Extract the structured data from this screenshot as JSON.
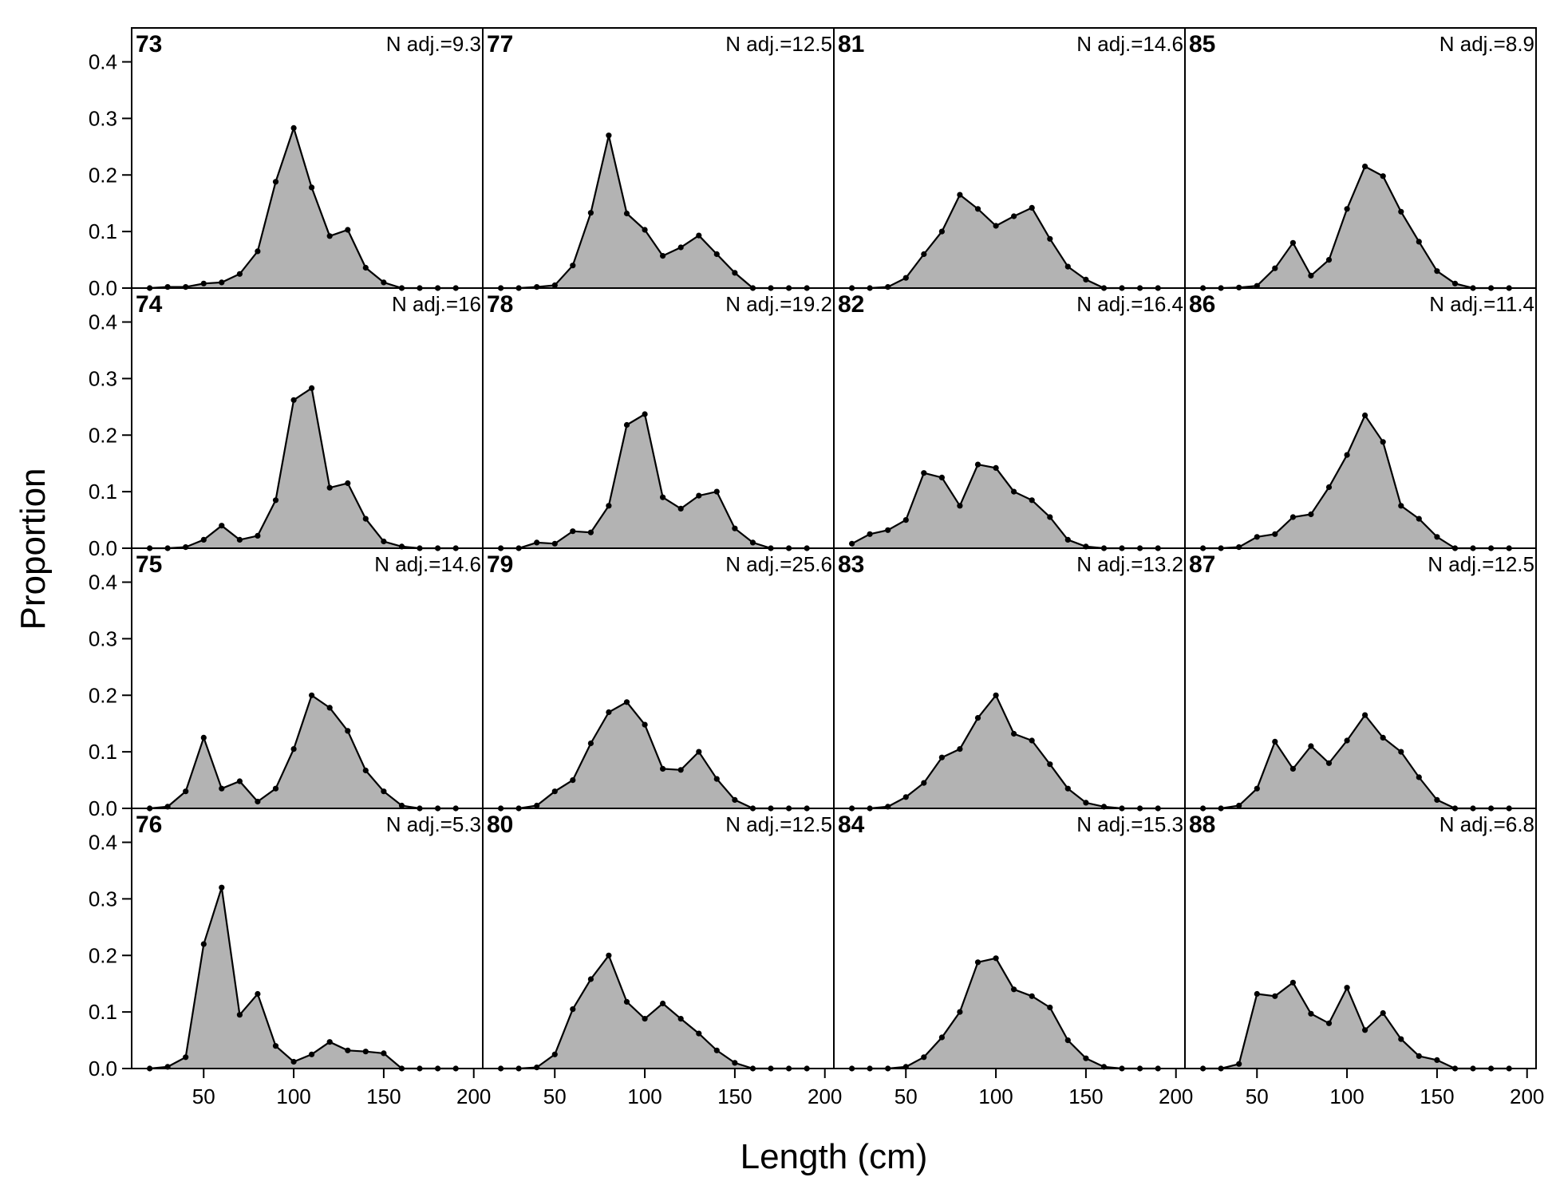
{
  "chart_data": {
    "type": "area",
    "xlabel": "Length (cm)",
    "ylabel": "Proportion",
    "xlim": [
      10,
      205
    ],
    "ylim": [
      0,
      0.46
    ],
    "xticks": [
      50,
      100,
      150,
      200
    ],
    "yticks": [
      0.0,
      0.1,
      0.2,
      0.3,
      0.4
    ],
    "ytick_labels": [
      "0.0",
      "0.1",
      "0.2",
      "0.3",
      "0.4"
    ],
    "x": [
      20,
      30,
      40,
      50,
      60,
      70,
      80,
      90,
      100,
      110,
      120,
      130,
      140,
      150,
      160,
      170,
      180,
      190
    ],
    "colors": {
      "fill": "#b3b3b3",
      "line": "#000000",
      "point": "#000000"
    },
    "panels": [
      {
        "label": "73",
        "n_adj": "N adj.=9.3",
        "values": [
          0,
          0.002,
          0.002,
          0.008,
          0.01,
          0.025,
          0.065,
          0.188,
          0.283,
          0.178,
          0.092,
          0.103,
          0.036,
          0.01,
          0,
          0,
          0,
          0
        ]
      },
      {
        "label": "77",
        "n_adj": "N adj.=12.5",
        "values": [
          0,
          0,
          0.002,
          0.005,
          0.04,
          0.133,
          0.27,
          0.132,
          0.103,
          0.057,
          0.072,
          0.093,
          0.06,
          0.027,
          0,
          0,
          0,
          0
        ]
      },
      {
        "label": "81",
        "n_adj": "N adj.=14.6",
        "values": [
          0,
          0,
          0.002,
          0.018,
          0.06,
          0.1,
          0.165,
          0.14,
          0.11,
          0.127,
          0.142,
          0.087,
          0.038,
          0.015,
          0,
          0,
          0,
          0
        ]
      },
      {
        "label": "85",
        "n_adj": "N adj.=8.9",
        "values": [
          0,
          0,
          0.001,
          0.004,
          0.035,
          0.08,
          0.022,
          0.05,
          0.14,
          0.215,
          0.198,
          0.135,
          0.082,
          0.03,
          0.008,
          0,
          0,
          0
        ]
      },
      {
        "label": "74",
        "n_adj": "N adj.=16",
        "values": [
          0,
          0,
          0.002,
          0.015,
          0.04,
          0.015,
          0.022,
          0.085,
          0.262,
          0.283,
          0.107,
          0.115,
          0.052,
          0.012,
          0.003,
          0,
          0,
          0
        ]
      },
      {
        "label": "78",
        "n_adj": "N adj.=19.2",
        "values": [
          0,
          0,
          0.01,
          0.008,
          0.03,
          0.028,
          0.075,
          0.218,
          0.237,
          0.09,
          0.07,
          0.093,
          0.1,
          0.035,
          0.01,
          0,
          0,
          0
        ]
      },
      {
        "label": "82",
        "n_adj": "N adj.=16.4",
        "values": [
          0.008,
          0.025,
          0.032,
          0.05,
          0.133,
          0.125,
          0.075,
          0.148,
          0.142,
          0.1,
          0.085,
          0.055,
          0.015,
          0.003,
          0,
          0,
          0,
          0
        ]
      },
      {
        "label": "86",
        "n_adj": "N adj.=11.4",
        "values": [
          0,
          0,
          0.002,
          0.02,
          0.025,
          0.055,
          0.06,
          0.108,
          0.165,
          0.235,
          0.188,
          0.075,
          0.052,
          0.02,
          0,
          0,
          0,
          0
        ]
      },
      {
        "label": "75",
        "n_adj": "N adj.=14.6",
        "values": [
          0,
          0.003,
          0.03,
          0.125,
          0.035,
          0.048,
          0.012,
          0.035,
          0.105,
          0.2,
          0.178,
          0.137,
          0.067,
          0.03,
          0.005,
          0,
          0,
          0
        ]
      },
      {
        "label": "79",
        "n_adj": "N adj.=25.6",
        "values": [
          0,
          0,
          0.005,
          0.03,
          0.05,
          0.115,
          0.17,
          0.188,
          0.148,
          0.07,
          0.068,
          0.1,
          0.052,
          0.015,
          0,
          0,
          0,
          0
        ]
      },
      {
        "label": "83",
        "n_adj": "N adj.=13.2",
        "values": [
          0,
          0,
          0.003,
          0.02,
          0.045,
          0.09,
          0.105,
          0.16,
          0.2,
          0.132,
          0.12,
          0.078,
          0.035,
          0.01,
          0.003,
          0,
          0,
          0
        ]
      },
      {
        "label": "87",
        "n_adj": "N adj.=12.5",
        "values": [
          0,
          0,
          0.005,
          0.035,
          0.118,
          0.07,
          0.11,
          0.08,
          0.12,
          0.165,
          0.125,
          0.1,
          0.055,
          0.015,
          0,
          0,
          0,
          0
        ]
      },
      {
        "label": "76",
        "n_adj": "N adj.=5.3",
        "values": [
          0,
          0.003,
          0.02,
          0.22,
          0.32,
          0.095,
          0.132,
          0.04,
          0.012,
          0.025,
          0.047,
          0.032,
          0.03,
          0.027,
          0,
          0,
          0,
          0
        ]
      },
      {
        "label": "80",
        "n_adj": "N adj.=12.5",
        "values": [
          0,
          0,
          0.002,
          0.025,
          0.105,
          0.158,
          0.2,
          0.118,
          0.088,
          0.115,
          0.088,
          0.062,
          0.032,
          0.01,
          0,
          0,
          0,
          0
        ]
      },
      {
        "label": "84",
        "n_adj": "N adj.=15.3",
        "values": [
          0,
          0,
          0,
          0.003,
          0.02,
          0.055,
          0.1,
          0.188,
          0.195,
          0.14,
          0.128,
          0.108,
          0.05,
          0.018,
          0.003,
          0,
          0,
          0
        ]
      },
      {
        "label": "88",
        "n_adj": "N adj.=6.8",
        "values": [
          0,
          0,
          0.008,
          0.132,
          0.128,
          0.152,
          0.097,
          0.08,
          0.143,
          0.068,
          0.098,
          0.052,
          0.022,
          0.015,
          0,
          0,
          0,
          0
        ]
      }
    ]
  }
}
